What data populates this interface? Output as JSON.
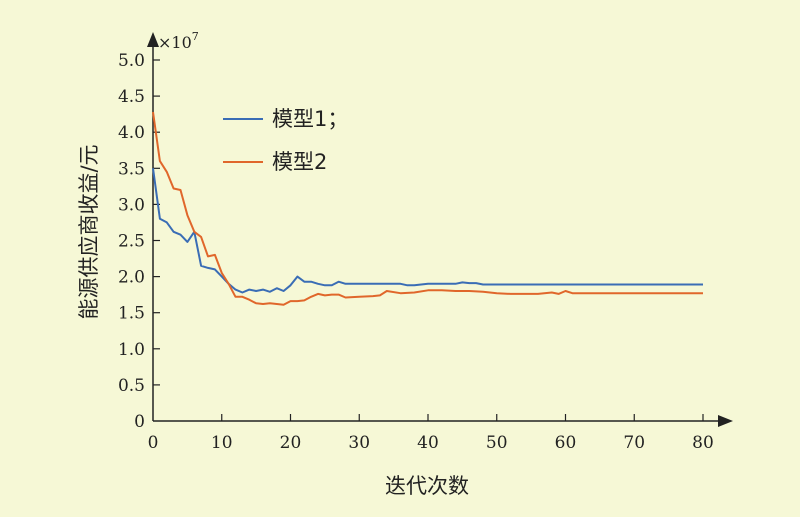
{
  "chart_data": {
    "type": "line",
    "xlabel": "迭代次数",
    "ylabel": "能源供应商收益/元",
    "y_multiplier_prefix": "×10",
    "y_multiplier_exp": "7",
    "xlim": [
      0,
      80
    ],
    "ylim": [
      0,
      5.0
    ],
    "x_ticks": [
      0,
      10,
      20,
      30,
      40,
      50,
      60,
      70,
      80
    ],
    "y_ticks": [
      0,
      0.5,
      1.0,
      1.5,
      2.0,
      2.5,
      3.0,
      3.5,
      4.0,
      4.5,
      5.0
    ],
    "x_tick_labels": [
      "0",
      "10",
      "20",
      "30",
      "40",
      "50",
      "60",
      "70",
      "80"
    ],
    "y_tick_labels": [
      "0",
      "0.5",
      "1.0",
      "1.5",
      "2.0",
      "2.5",
      "3.0",
      "3.5",
      "4.0",
      "4.5",
      "5.0"
    ],
    "legend_position": "upper-left",
    "grid": false,
    "series": [
      {
        "name": "模型1；",
        "color": "#3a6db5",
        "x": [
          0,
          1,
          2,
          3,
          4,
          5,
          6,
          7,
          8,
          9,
          10,
          11,
          12,
          13,
          14,
          15,
          16,
          17,
          18,
          19,
          20,
          21,
          22,
          23,
          24,
          25,
          26,
          27,
          28,
          29,
          30,
          32,
          34,
          36,
          37,
          38,
          40,
          42,
          44,
          45,
          46,
          47,
          48,
          50,
          52,
          55,
          60,
          65,
          70,
          75,
          80
        ],
        "y": [
          3.5,
          2.8,
          2.75,
          2.62,
          2.58,
          2.48,
          2.62,
          2.15,
          2.12,
          2.1,
          2.0,
          1.9,
          1.82,
          1.78,
          1.82,
          1.8,
          1.82,
          1.79,
          1.84,
          1.8,
          1.88,
          2.0,
          1.93,
          1.93,
          1.9,
          1.88,
          1.88,
          1.93,
          1.9,
          1.9,
          1.9,
          1.9,
          1.9,
          1.9,
          1.88,
          1.88,
          1.9,
          1.9,
          1.9,
          1.92,
          1.91,
          1.91,
          1.89,
          1.89,
          1.89,
          1.89,
          1.89,
          1.89,
          1.89,
          1.89,
          1.89
        ]
      },
      {
        "name": "模型2",
        "color": "#e0672b",
        "x": [
          0,
          1,
          2,
          3,
          4,
          5,
          6,
          7,
          8,
          9,
          10,
          11,
          12,
          13,
          14,
          15,
          16,
          17,
          18,
          19,
          20,
          21,
          22,
          23,
          24,
          25,
          26,
          27,
          28,
          30,
          32,
          33,
          34,
          36,
          38,
          40,
          42,
          44,
          46,
          48,
          50,
          52,
          54,
          56,
          58,
          59,
          60,
          61,
          62,
          65,
          70,
          75,
          80
        ],
        "y": [
          4.28,
          3.6,
          3.45,
          3.22,
          3.2,
          2.85,
          2.62,
          2.55,
          2.28,
          2.3,
          2.05,
          1.9,
          1.72,
          1.72,
          1.68,
          1.63,
          1.62,
          1.63,
          1.62,
          1.61,
          1.66,
          1.66,
          1.67,
          1.72,
          1.76,
          1.74,
          1.75,
          1.75,
          1.71,
          1.72,
          1.73,
          1.74,
          1.8,
          1.77,
          1.78,
          1.81,
          1.81,
          1.8,
          1.8,
          1.79,
          1.77,
          1.76,
          1.76,
          1.76,
          1.78,
          1.76,
          1.8,
          1.77,
          1.77,
          1.77,
          1.77,
          1.77,
          1.77
        ]
      }
    ]
  }
}
